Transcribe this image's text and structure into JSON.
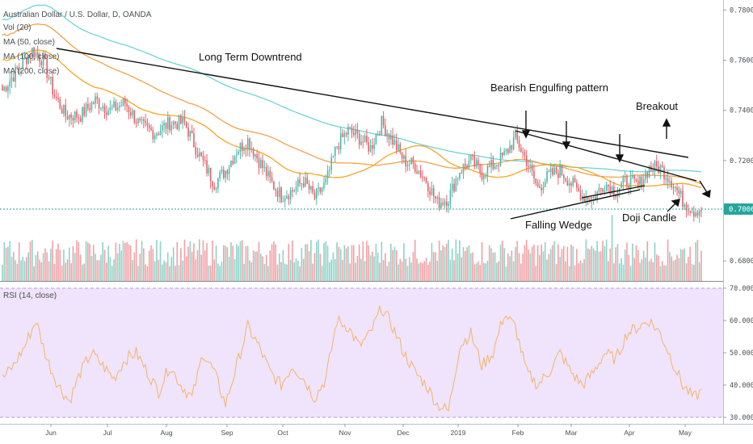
{
  "legend": {
    "symbol": "Australian Dollar / U.S. Dollar, D, OANDA",
    "vol": "Vol (20)",
    "ma50": "MA (50, close)",
    "ma100": "MA (100, close)",
    "ma200": "MA (200, close)",
    "rsi": "RSI (14, close)"
  },
  "colors": {
    "up": "#4fb9a9",
    "down": "#e5636a",
    "vol_up": "#8fd3c8",
    "vol_down": "#f2a1a5",
    "ma50": "#f5a623",
    "ma100": "#f0a24a",
    "ma200": "#6cd4d8",
    "rsi_line": "#f4b36b",
    "rsi_band": "#efe4fb",
    "price_tag": "#26a69a"
  },
  "chart_data": {
    "type": "candlestick",
    "price_axis": {
      "ylim": [
        0.672,
        0.784
      ],
      "ticks": [
        "0.78000",
        "0.76000",
        "0.74000",
        "0.72000",
        "0.70000",
        "0.68000"
      ],
      "last_price": "0.70063"
    },
    "rsi_axis": {
      "ylim": [
        28,
        72
      ],
      "ticks": [
        "70.0000",
        "60.0000",
        "50.0000",
        "40.0000",
        "30.0000"
      ],
      "band": [
        30,
        70
      ]
    },
    "x_ticks": [
      "Jun",
      "Jul",
      "Aug",
      "Sep",
      "Oct",
      "Nov",
      "Dec",
      "2019",
      "Feb",
      "Mar",
      "Apr",
      "May"
    ],
    "close_anchors": [
      [
        0,
        0.748
      ],
      [
        8,
        0.756
      ],
      [
        16,
        0.764
      ],
      [
        22,
        0.76
      ],
      [
        28,
        0.746
      ],
      [
        34,
        0.738
      ],
      [
        42,
        0.738
      ],
      [
        50,
        0.744
      ],
      [
        58,
        0.74
      ],
      [
        66,
        0.743
      ],
      [
        74,
        0.734
      ],
      [
        82,
        0.731
      ],
      [
        90,
        0.735
      ],
      [
        98,
        0.735
      ],
      [
        106,
        0.722
      ],
      [
        114,
        0.711
      ],
      [
        120,
        0.716
      ],
      [
        126,
        0.724
      ],
      [
        132,
        0.728
      ],
      [
        138,
        0.72
      ],
      [
        144,
        0.712
      ],
      [
        150,
        0.706
      ],
      [
        156,
        0.708
      ],
      [
        162,
        0.712
      ],
      [
        168,
        0.705
      ],
      [
        174,
        0.711
      ],
      [
        180,
        0.726
      ],
      [
        186,
        0.732
      ],
      [
        192,
        0.729
      ],
      [
        198,
        0.725
      ],
      [
        204,
        0.735
      ],
      [
        210,
        0.728
      ],
      [
        216,
        0.72
      ],
      [
        222,
        0.718
      ],
      [
        228,
        0.712
      ],
      [
        234,
        0.703
      ],
      [
        240,
        0.705
      ],
      [
        246,
        0.716
      ],
      [
        252,
        0.72
      ],
      [
        258,
        0.715
      ],
      [
        264,
        0.718
      ],
      [
        270,
        0.722
      ],
      [
        276,
        0.729
      ],
      [
        282,
        0.72
      ],
      [
        288,
        0.709
      ],
      [
        294,
        0.714
      ],
      [
        300,
        0.716
      ],
      [
        306,
        0.711
      ],
      [
        312,
        0.706
      ],
      [
        318,
        0.705
      ],
      [
        324,
        0.711
      ],
      [
        330,
        0.708
      ],
      [
        336,
        0.712
      ],
      [
        342,
        0.71
      ],
      [
        348,
        0.717
      ],
      [
        354,
        0.717
      ],
      [
        360,
        0.712
      ],
      [
        366,
        0.704
      ],
      [
        372,
        0.7
      ],
      [
        376,
        0.701
      ]
    ],
    "rsi_anchors": [
      [
        0,
        42
      ],
      [
        6,
        46
      ],
      [
        12,
        52
      ],
      [
        18,
        60
      ],
      [
        24,
        48
      ],
      [
        30,
        40
      ],
      [
        36,
        35
      ],
      [
        42,
        44
      ],
      [
        48,
        50
      ],
      [
        54,
        46
      ],
      [
        60,
        42
      ],
      [
        66,
        48
      ],
      [
        72,
        50
      ],
      [
        78,
        44
      ],
      [
        84,
        38
      ],
      [
        90,
        46
      ],
      [
        96,
        40
      ],
      [
        102,
        36
      ],
      [
        108,
        50
      ],
      [
        114,
        44
      ],
      [
        120,
        34
      ],
      [
        126,
        46
      ],
      [
        132,
        58
      ],
      [
        138,
        52
      ],
      [
        144,
        44
      ],
      [
        150,
        40
      ],
      [
        156,
        46
      ],
      [
        162,
        42
      ],
      [
        168,
        36
      ],
      [
        174,
        42
      ],
      [
        180,
        60
      ],
      [
        186,
        58
      ],
      [
        192,
        52
      ],
      [
        198,
        56
      ],
      [
        204,
        64
      ],
      [
        210,
        58
      ],
      [
        216,
        50
      ],
      [
        222,
        44
      ],
      [
        228,
        40
      ],
      [
        234,
        34
      ],
      [
        240,
        32
      ],
      [
        246,
        52
      ],
      [
        252,
        56
      ],
      [
        258,
        46
      ],
      [
        264,
        50
      ],
      [
        270,
        62
      ],
      [
        276,
        58
      ],
      [
        282,
        44
      ],
      [
        288,
        40
      ],
      [
        294,
        44
      ],
      [
        300,
        50
      ],
      [
        306,
        44
      ],
      [
        312,
        40
      ],
      [
        318,
        44
      ],
      [
        324,
        50
      ],
      [
        330,
        48
      ],
      [
        336,
        56
      ],
      [
        342,
        58
      ],
      [
        348,
        60
      ],
      [
        354,
        56
      ],
      [
        360,
        48
      ],
      [
        366,
        40
      ],
      [
        372,
        36
      ],
      [
        376,
        38
      ]
    ],
    "num_bars": 377
  },
  "annotations": {
    "long_term": "Long Term Downtrend",
    "bearish": "Bearish Engulfing pattern",
    "breakout": "Breakout",
    "falling_wedge": "Falling Wedge",
    "doji": "Doji Candle"
  }
}
